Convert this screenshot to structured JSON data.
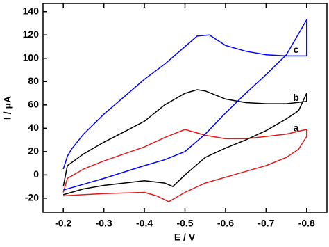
{
  "chart_data": {
    "type": "line",
    "xlabel": "E / V",
    "ylabel": "I / μA",
    "xlim": [
      -0.15,
      -0.85
    ],
    "ylim": [
      -32,
      147
    ],
    "xticks": [
      -0.2,
      -0.3,
      -0.4,
      -0.5,
      -0.6,
      -0.7,
      -0.8
    ],
    "yticks": [
      -20,
      0,
      20,
      40,
      60,
      80,
      100,
      120,
      140
    ],
    "series": [
      {
        "name": "a",
        "color": "#e41a1c",
        "x": [
          -0.2,
          -0.3,
          -0.4,
          -0.43,
          -0.46,
          -0.5,
          -0.55,
          -0.6,
          -0.65,
          -0.7,
          -0.75,
          -0.78,
          -0.8,
          -0.8,
          -0.75,
          -0.7,
          -0.65,
          -0.6,
          -0.55,
          -0.5,
          -0.45,
          -0.4,
          -0.35,
          -0.3,
          -0.25,
          -0.21,
          -0.2
        ],
        "values": [
          -18,
          -16,
          -15,
          -18,
          -23,
          -15,
          -7,
          -2,
          3,
          8,
          15,
          22,
          33,
          39,
          35,
          33,
          31,
          31,
          34,
          39,
          32,
          24,
          18,
          12,
          5,
          -3,
          -15
        ]
      },
      {
        "name": "b",
        "color": "#000000",
        "x": [
          -0.2,
          -0.25,
          -0.3,
          -0.35,
          -0.4,
          -0.45,
          -0.47,
          -0.5,
          -0.55,
          -0.6,
          -0.65,
          -0.7,
          -0.75,
          -0.78,
          -0.8,
          -0.8,
          -0.75,
          -0.7,
          -0.65,
          -0.6,
          -0.55,
          -0.53,
          -0.5,
          -0.45,
          -0.4,
          -0.35,
          -0.3,
          -0.25,
          -0.21,
          -0.2
        ],
        "values": [
          -17,
          -12,
          -9,
          -7,
          -5,
          -7,
          -10,
          0,
          15,
          23,
          30,
          38,
          48,
          55,
          70,
          63,
          61,
          61,
          62,
          65,
          72,
          73,
          70,
          60,
          46,
          37,
          28,
          18,
          8,
          -10
        ]
      },
      {
        "name": "c",
        "color": "#0000ff",
        "x": [
          -0.2,
          -0.3,
          -0.4,
          -0.45,
          -0.5,
          -0.55,
          -0.6,
          -0.65,
          -0.7,
          -0.75,
          -0.8,
          -0.8,
          -0.75,
          -0.7,
          -0.65,
          -0.6,
          -0.56,
          -0.53,
          -0.5,
          -0.45,
          -0.4,
          -0.35,
          -0.3,
          -0.25,
          -0.22,
          -0.21,
          -0.2
        ],
        "values": [
          -13,
          -3,
          8,
          13,
          20,
          35,
          53,
          70,
          86,
          103,
          133,
          102,
          102,
          103,
          106,
          111,
          120,
          119,
          110,
          95,
          82,
          67,
          52,
          35,
          22,
          16,
          5
        ]
      }
    ]
  }
}
